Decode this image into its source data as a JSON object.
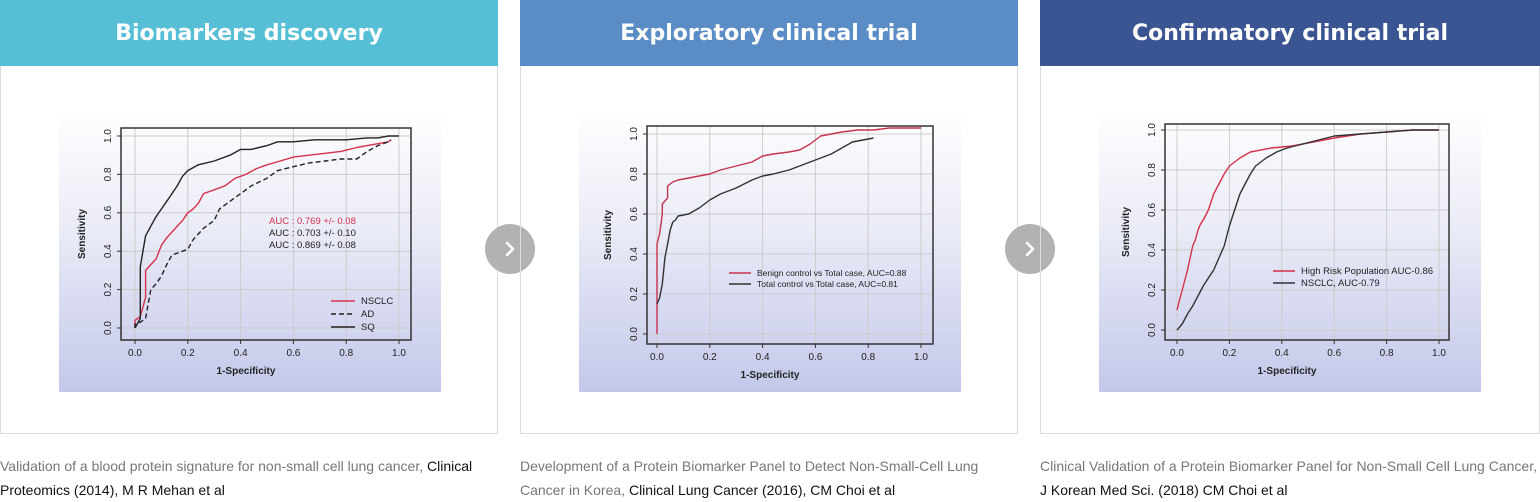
{
  "panels": [
    {
      "title": "Biomarkers discovery",
      "header_color": "#56bfd6",
      "caption_lead": "Validation of a blood protein signature for non-small cell lung cancer, ",
      "caption_source": "Clinical Proteomics (2014), M R Mehan et al"
    },
    {
      "title": "Exploratory clinical trial",
      "header_color": "#5a8cc6",
      "caption_lead": "Development of a Protein Biomarker Panel to Detect Non-Small-Cell Lung Cancer in Korea, ",
      "caption_source": "Clinical Lung Cancer (2016), CM Choi et al"
    },
    {
      "title": "Confirmatory clinical trial",
      "header_color": "#3b5593",
      "caption_lead": "Clinical Validation of a Protein Biomarker Panel for Non-Small Cell Lung Cancer, ",
      "caption_source": "J Korean Med Sci. (2018) CM Choi et al"
    }
  ],
  "arrow_icon": "chevron-right-icon",
  "chart_data": [
    {
      "type": "line",
      "xlabel": "1-Specificity",
      "ylabel": "Sensitivity",
      "xlim": [
        0,
        1
      ],
      "ylim": [
        0,
        1
      ],
      "xticks": [
        "0.0",
        "0.2",
        "0.4",
        "0.6",
        "0.8",
        "1.0"
      ],
      "yticks": [
        "0.0",
        "0.2",
        "0.4",
        "0.6",
        "0.8",
        "1.0"
      ],
      "grid": true,
      "annotations": [
        {
          "text": "AUC : 0.769 +/- 0.08",
          "color": "#d6304a"
        },
        {
          "text": "AUC : 0.703 +/- 0.10",
          "color": "#222222"
        },
        {
          "text": "AUC : 0.869 +/- 0.08",
          "color": "#222222"
        }
      ],
      "legend_position": "bottom-right",
      "series": [
        {
          "name": "NSCLC",
          "color": "#d6304a",
          "dash": "",
          "x": [
            0,
            0,
            0.02,
            0.04,
            0.04,
            0.06,
            0.08,
            0.1,
            0.12,
            0.14,
            0.16,
            0.18,
            0.2,
            0.22,
            0.24,
            0.26,
            0.3,
            0.34,
            0.38,
            0.42,
            0.46,
            0.5,
            0.55,
            0.6,
            0.66,
            0.72,
            0.78,
            0.84,
            0.88,
            0.92,
            0.96,
            0.97
          ],
          "y": [
            0,
            0.04,
            0.06,
            0.16,
            0.3,
            0.33,
            0.36,
            0.43,
            0.47,
            0.5,
            0.53,
            0.56,
            0.6,
            0.62,
            0.65,
            0.7,
            0.72,
            0.74,
            0.78,
            0.8,
            0.83,
            0.85,
            0.87,
            0.89,
            0.9,
            0.91,
            0.92,
            0.94,
            0.95,
            0.96,
            0.97,
            0.98
          ]
        },
        {
          "name": "AD",
          "color": "#222222",
          "dash": "5,3",
          "x": [
            0,
            0,
            0.02,
            0.04,
            0.06,
            0.08,
            0.1,
            0.12,
            0.14,
            0.2,
            0.22,
            0.26,
            0.3,
            0.32,
            0.36,
            0.4,
            0.44,
            0.5,
            0.54,
            0.6,
            0.66,
            0.72,
            0.78,
            0.84,
            0.86,
            0.88,
            0.92,
            0.96,
            0.97
          ],
          "y": [
            0,
            0.02,
            0.03,
            0.05,
            0.2,
            0.23,
            0.27,
            0.33,
            0.38,
            0.41,
            0.46,
            0.52,
            0.56,
            0.62,
            0.66,
            0.7,
            0.74,
            0.78,
            0.82,
            0.84,
            0.86,
            0.87,
            0.88,
            0.88,
            0.9,
            0.92,
            0.95,
            0.97,
            0.98
          ]
        },
        {
          "name": "SQ",
          "color": "#222222",
          "dash": "",
          "x": [
            0,
            0.02,
            0.02,
            0.04,
            0.06,
            0.08,
            0.1,
            0.12,
            0.14,
            0.16,
            0.18,
            0.2,
            0.24,
            0.3,
            0.36,
            0.4,
            0.44,
            0.5,
            0.54,
            0.6,
            0.68,
            0.8,
            0.88,
            0.92,
            0.96,
            1.0
          ],
          "y": [
            0,
            0.05,
            0.32,
            0.48,
            0.53,
            0.58,
            0.62,
            0.66,
            0.7,
            0.74,
            0.79,
            0.82,
            0.85,
            0.87,
            0.9,
            0.93,
            0.93,
            0.95,
            0.97,
            0.97,
            0.98,
            0.98,
            0.99,
            0.99,
            1.0,
            1.0
          ]
        }
      ]
    },
    {
      "type": "line",
      "xlabel": "1-Specificity",
      "ylabel": "Sensitivity",
      "xlim": [
        0,
        1
      ],
      "ylim": [
        0,
        1
      ],
      "xticks": [
        "0.0",
        "0.2",
        "0.4",
        "0.6",
        "0.8",
        "1.0"
      ],
      "yticks": [
        "0.0",
        "0.2",
        "0.4",
        "0.6",
        "0.8",
        "1.0"
      ],
      "grid": true,
      "legend_position": "bottom-right",
      "series": [
        {
          "name": "Benign control vs Total case, AUC=0.88",
          "color": "#c7324d",
          "dash": "",
          "x": [
            0,
            0,
            0.01,
            0.02,
            0.02,
            0.04,
            0.04,
            0.06,
            0.08,
            0.12,
            0.16,
            0.2,
            0.24,
            0.3,
            0.36,
            0.4,
            0.44,
            0.5,
            0.54,
            0.58,
            0.6,
            0.62,
            0.66,
            0.7,
            0.76,
            0.82,
            0.88,
            1.0
          ],
          "y": [
            0,
            0.45,
            0.5,
            0.6,
            0.65,
            0.68,
            0.74,
            0.76,
            0.77,
            0.78,
            0.79,
            0.8,
            0.82,
            0.84,
            0.86,
            0.89,
            0.9,
            0.91,
            0.92,
            0.95,
            0.97,
            0.99,
            1.0,
            1.01,
            1.02,
            1.02,
            1.03,
            1.03
          ]
        },
        {
          "name": "Total control vs Total case, AUC=0.81",
          "color": "#333333",
          "dash": "",
          "x": [
            0,
            0.01,
            0.02,
            0.03,
            0.04,
            0.05,
            0.06,
            0.07,
            0.08,
            0.12,
            0.16,
            0.2,
            0.24,
            0.3,
            0.36,
            0.4,
            0.44,
            0.5,
            0.54,
            0.58,
            0.62,
            0.66,
            0.7,
            0.74,
            0.78,
            0.82
          ],
          "y": [
            0.15,
            0.18,
            0.25,
            0.38,
            0.45,
            0.52,
            0.56,
            0.57,
            0.59,
            0.6,
            0.63,
            0.67,
            0.7,
            0.73,
            0.77,
            0.79,
            0.8,
            0.82,
            0.84,
            0.86,
            0.88,
            0.9,
            0.93,
            0.96,
            0.97,
            0.98
          ]
        }
      ]
    },
    {
      "type": "line",
      "xlabel": "1-Specificity",
      "ylabel": "Sensitivity",
      "xlim": [
        0,
        1
      ],
      "ylim": [
        0,
        1
      ],
      "xticks": [
        "0.0",
        "0.2",
        "0.4",
        "0.6",
        "0.8",
        "1.0"
      ],
      "yticks": [
        "0.0",
        "0.2",
        "0.4",
        "0.6",
        "0.8",
        "1.0"
      ],
      "grid": true,
      "legend_position": "bottom-right",
      "series": [
        {
          "name": "High Risk Population AUC-0.86",
          "color": "#d6304a",
          "dash": "",
          "x": [
            0,
            0.01,
            0.02,
            0.03,
            0.04,
            0.05,
            0.06,
            0.07,
            0.08,
            0.09,
            0.1,
            0.12,
            0.14,
            0.16,
            0.18,
            0.2,
            0.24,
            0.28,
            0.36,
            0.44,
            0.52,
            0.6,
            0.7,
            0.8,
            0.9,
            1.0
          ],
          "y": [
            0.1,
            0.15,
            0.2,
            0.25,
            0.3,
            0.36,
            0.42,
            0.45,
            0.5,
            0.53,
            0.55,
            0.6,
            0.68,
            0.73,
            0.78,
            0.82,
            0.86,
            0.89,
            0.91,
            0.92,
            0.94,
            0.96,
            0.98,
            0.99,
            1.0,
            1.0
          ]
        },
        {
          "name": "NSCLC, AUC-0.79",
          "color": "#333333",
          "dash": "",
          "x": [
            0,
            0.02,
            0.04,
            0.06,
            0.08,
            0.1,
            0.12,
            0.14,
            0.16,
            0.18,
            0.2,
            0.22,
            0.24,
            0.26,
            0.28,
            0.3,
            0.34,
            0.38,
            0.42,
            0.48,
            0.54,
            0.6,
            0.7,
            0.8,
            0.9,
            1.0
          ],
          "y": [
            0,
            0.03,
            0.08,
            0.12,
            0.17,
            0.22,
            0.26,
            0.3,
            0.36,
            0.42,
            0.52,
            0.6,
            0.68,
            0.73,
            0.78,
            0.82,
            0.86,
            0.89,
            0.91,
            0.93,
            0.95,
            0.97,
            0.98,
            0.99,
            1.0,
            1.0
          ]
        }
      ]
    }
  ]
}
